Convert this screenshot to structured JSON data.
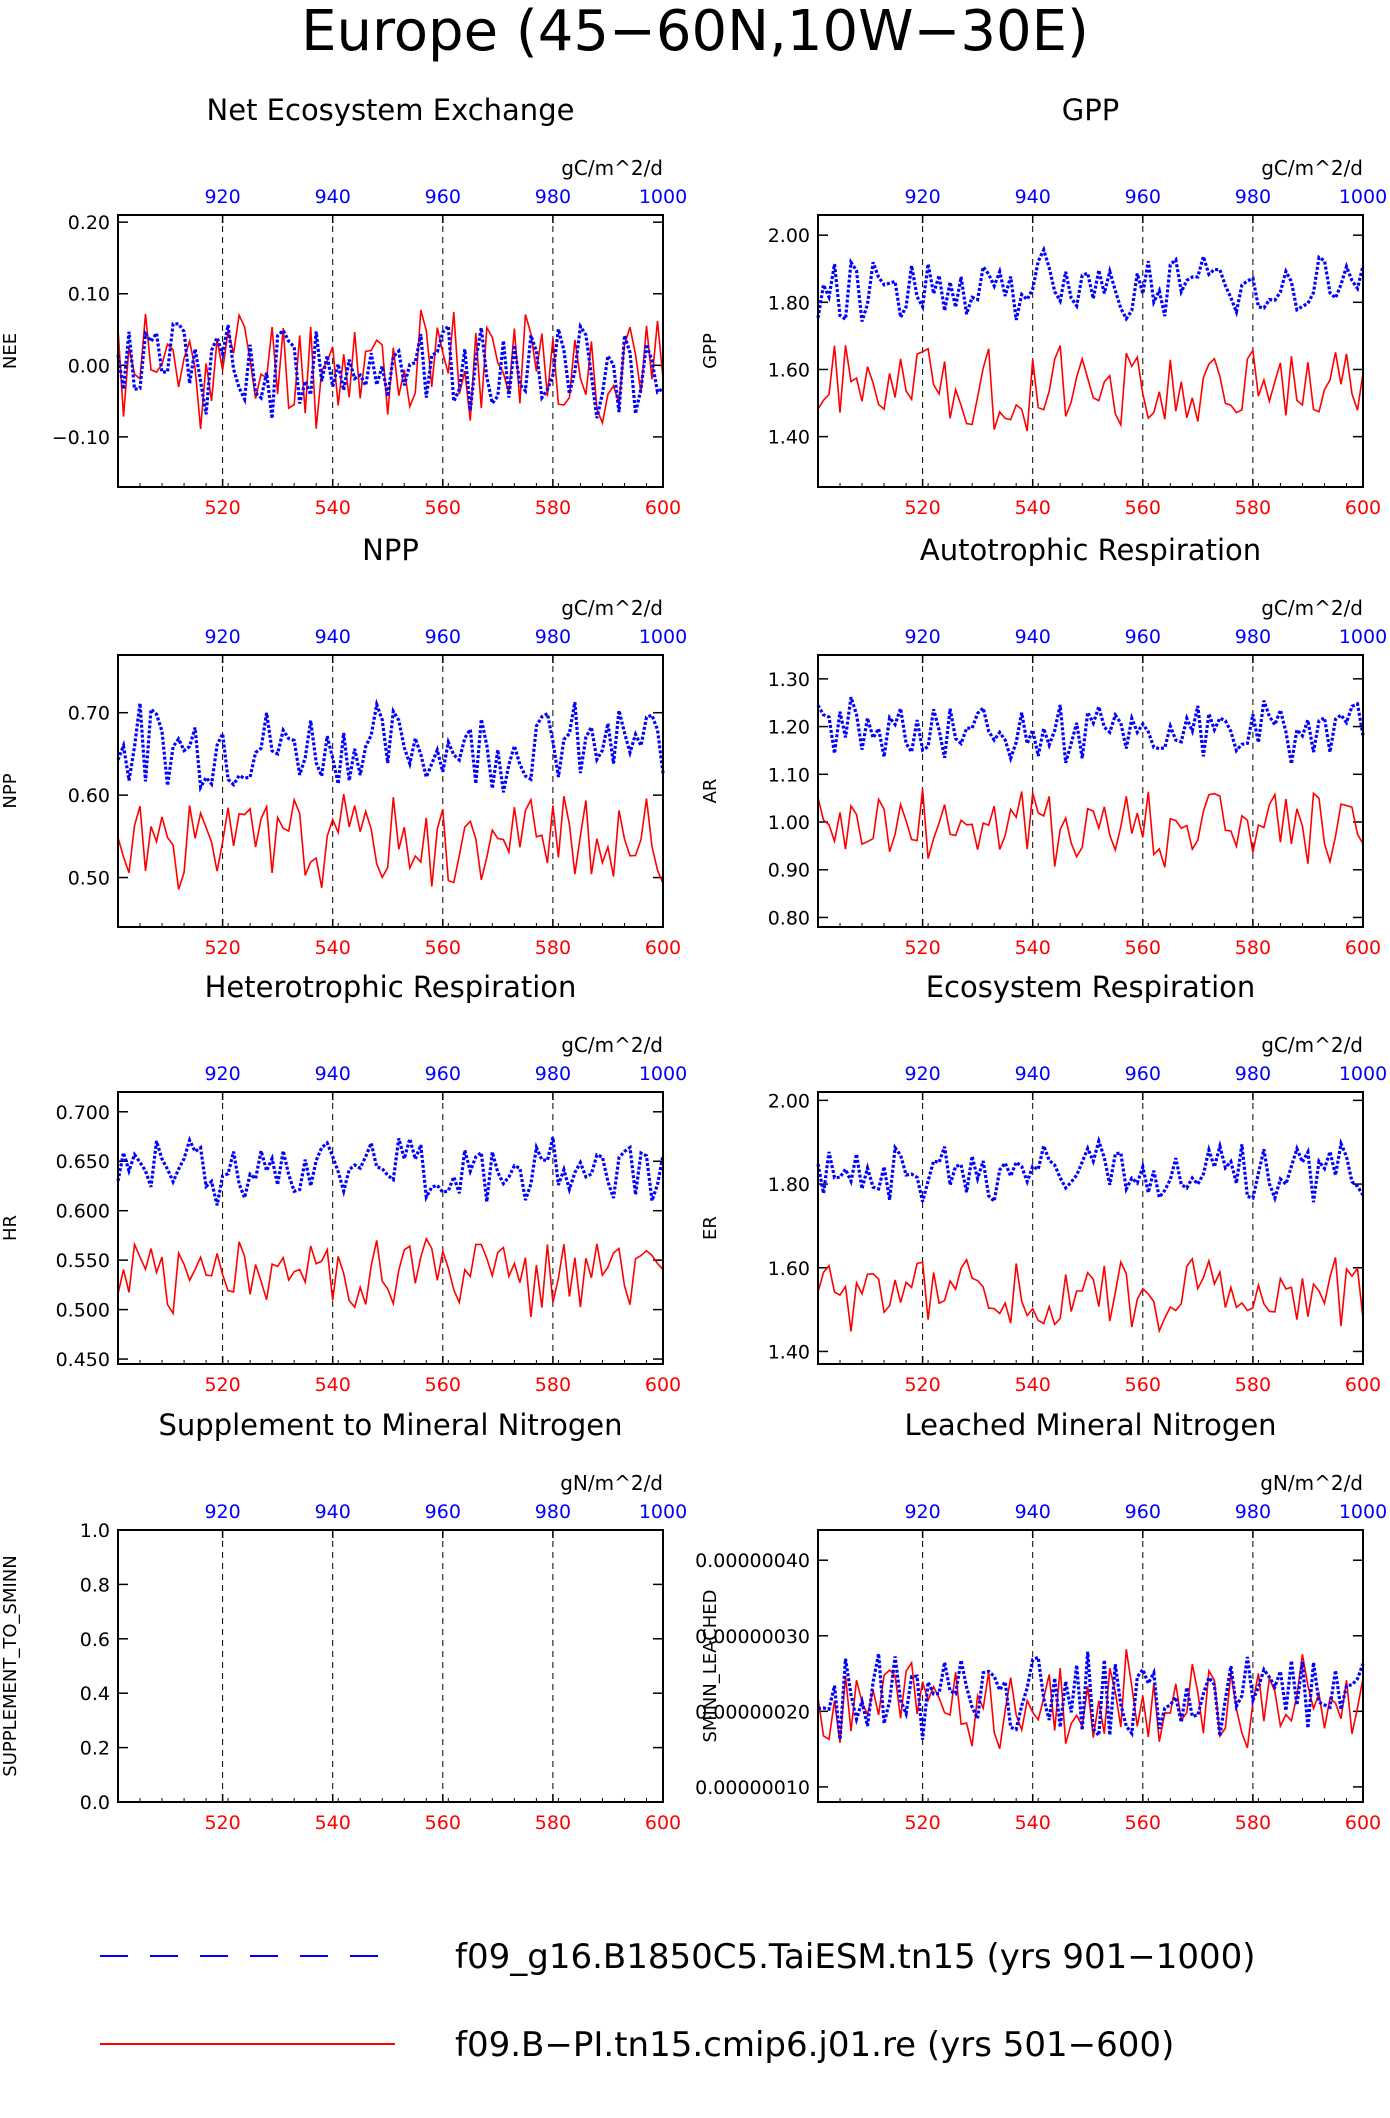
{
  "figure": {
    "title": "Europe (45−60N,10W−30E)"
  },
  "colors": {
    "series_a": "#ff0000",
    "series_b": "#0000ff",
    "axis": "#000000",
    "grid": "#000000"
  },
  "legend": [
    {
      "label": "f09_g16.B1850C5.TaiESM.tn15 (yrs 901−1000)",
      "color": "#0000ff",
      "style": "dashed"
    },
    {
      "label": "f09.B−PI.tn15.cmip6.j01.re (yrs 501−600)",
      "color": "#ff0000",
      "style": "solid"
    }
  ],
  "chart_data": [
    {
      "type": "line",
      "title": "Net Ecosystem Exchange",
      "ylabel": "NEE",
      "units": "gC/m^2/d",
      "bottom_axis": {
        "range": [
          501,
          600
        ],
        "ticks": [
          "520",
          "540",
          "560",
          "580",
          "600"
        ],
        "color": "#ff0000"
      },
      "top_axis": {
        "range": [
          901,
          1000
        ],
        "ticks": [
          "920",
          "940",
          "960",
          "980",
          "1000"
        ],
        "color": "#0000ff"
      },
      "ylim": [
        -0.17,
        0.21
      ],
      "yticks": [
        "0.20",
        "0.10",
        "0.00",
        "−0.10"
      ],
      "ytick_values": [
        0.2,
        0.1,
        0.0,
        -0.1
      ],
      "series": [
        {
          "name": "f09.B−PI.tn15.cmip6.j01.re (yrs 501−600)",
          "mean": 0.0,
          "amp": 0.075,
          "seed": 11
        },
        {
          "name": "f09_g16.B1850C5.TaiESM.tn15 (yrs 901−1000)",
          "mean": 0.0,
          "amp": 0.06,
          "seed": 12
        }
      ]
    },
    {
      "type": "line",
      "title": "GPP",
      "ylabel": "GPP",
      "units": "gC/m^2/d",
      "bottom_axis": {
        "range": [
          501,
          600
        ],
        "ticks": [
          "520",
          "540",
          "560",
          "580",
          "600"
        ],
        "color": "#ff0000"
      },
      "top_axis": {
        "range": [
          901,
          1000
        ],
        "ticks": [
          "920",
          "940",
          "960",
          "980",
          "1000"
        ],
        "color": "#0000ff"
      },
      "ylim": [
        1.25,
        2.06
      ],
      "yticks": [
        "2.00",
        "1.80",
        "1.60",
        "1.40"
      ],
      "ytick_values": [
        2.0,
        1.8,
        1.6,
        1.4
      ],
      "series": [
        {
          "name": "f09.B−PI.tn15.cmip6.j01.re (yrs 501−600)",
          "mean": 1.55,
          "amp": 0.11,
          "seed": 21
        },
        {
          "name": "f09_g16.B1850C5.TaiESM.tn15 (yrs 901−1000)",
          "mean": 1.85,
          "amp": 0.09,
          "seed": 22
        }
      ]
    },
    {
      "type": "line",
      "title": "NPP",
      "ylabel": "NPP",
      "units": "gC/m^2/d",
      "bottom_axis": {
        "range": [
          501,
          600
        ],
        "ticks": [
          "520",
          "540",
          "560",
          "580",
          "600"
        ],
        "color": "#ff0000"
      },
      "top_axis": {
        "range": [
          901,
          1000
        ],
        "ticks": [
          "920",
          "940",
          "960",
          "980",
          "1000"
        ],
        "color": "#0000ff"
      },
      "ylim": [
        0.44,
        0.77
      ],
      "yticks": [
        "0.70",
        "0.60",
        "0.50"
      ],
      "ytick_values": [
        0.7,
        0.6,
        0.5
      ],
      "series": [
        {
          "name": "f09.B−PI.tn15.cmip6.j01.re (yrs 501−600)",
          "mean": 0.545,
          "amp": 0.05,
          "seed": 31
        },
        {
          "name": "f09_g16.B1850C5.TaiESM.tn15 (yrs 901−1000)",
          "mean": 0.66,
          "amp": 0.045,
          "seed": 32
        }
      ]
    },
    {
      "type": "line",
      "title": "Autotrophic Respiration",
      "ylabel": "AR",
      "units": "gC/m^2/d",
      "bottom_axis": {
        "range": [
          501,
          600
        ],
        "ticks": [
          "520",
          "540",
          "560",
          "580",
          "600"
        ],
        "color": "#ff0000"
      },
      "top_axis": {
        "range": [
          901,
          1000
        ],
        "ticks": [
          "920",
          "940",
          "960",
          "980",
          "1000"
        ],
        "color": "#0000ff"
      },
      "ylim": [
        0.78,
        1.35
      ],
      "yticks": [
        "1.30",
        "1.20",
        "1.10",
        "1.00",
        "0.90",
        "0.80"
      ],
      "ytick_values": [
        1.3,
        1.2,
        1.1,
        1.0,
        0.9,
        0.8
      ],
      "series": [
        {
          "name": "f09.B−PI.tn15.cmip6.j01.re (yrs 501−600)",
          "mean": 0.99,
          "amp": 0.08,
          "seed": 41
        },
        {
          "name": "f09_g16.B1850C5.TaiESM.tn15 (yrs 901−1000)",
          "mean": 1.19,
          "amp": 0.06,
          "seed": 42
        }
      ]
    },
    {
      "type": "line",
      "title": "Heterotrophic Respiration",
      "ylabel": "HR",
      "units": "gC/m^2/d",
      "bottom_axis": {
        "range": [
          501,
          600
        ],
        "ticks": [
          "520",
          "540",
          "560",
          "580",
          "600"
        ],
        "color": "#ff0000"
      },
      "top_axis": {
        "range": [
          901,
          1000
        ],
        "ticks": [
          "920",
          "940",
          "960",
          "980",
          "1000"
        ],
        "color": "#0000ff"
      },
      "ylim": [
        0.445,
        0.72
      ],
      "yticks": [
        "0.700",
        "0.650",
        "0.600",
        "0.550",
        "0.500",
        "0.450"
      ],
      "ytick_values": [
        0.7,
        0.65,
        0.6,
        0.55,
        0.5,
        0.45
      ],
      "series": [
        {
          "name": "f09.B−PI.tn15.cmip6.j01.re (yrs 501−600)",
          "mean": 0.535,
          "amp": 0.035,
          "seed": 51
        },
        {
          "name": "f09_g16.B1850C5.TaiESM.tn15 (yrs 901−1000)",
          "mean": 0.642,
          "amp": 0.03,
          "seed": 52
        }
      ]
    },
    {
      "type": "line",
      "title": "Ecosystem Respiration",
      "ylabel": "ER",
      "units": "gC/m^2/d",
      "bottom_axis": {
        "range": [
          501,
          600
        ],
        "ticks": [
          "520",
          "540",
          "560",
          "580",
          "600"
        ],
        "color": "#ff0000"
      },
      "top_axis": {
        "range": [
          901,
          1000
        ],
        "ticks": [
          "920",
          "940",
          "960",
          "980",
          "1000"
        ],
        "color": "#0000ff"
      },
      "ylim": [
        1.37,
        2.02
      ],
      "yticks": [
        "2.00",
        "1.80",
        "1.60",
        "1.40"
      ],
      "ytick_values": [
        2.0,
        1.8,
        1.6,
        1.4
      ],
      "series": [
        {
          "name": "f09.B−PI.tn15.cmip6.j01.re (yrs 501−600)",
          "mean": 1.53,
          "amp": 0.08,
          "seed": 61
        },
        {
          "name": "f09_g16.B1850C5.TaiESM.tn15 (yrs 901−1000)",
          "mean": 1.83,
          "amp": 0.06,
          "seed": 62
        }
      ]
    },
    {
      "type": "line",
      "title": "Supplement to Mineral Nitrogen",
      "ylabel": "SUPPLEMENT_TO_SMINN",
      "units": "gN/m^2/d",
      "bottom_axis": {
        "range": [
          501,
          600
        ],
        "ticks": [
          "520",
          "540",
          "560",
          "580",
          "600"
        ],
        "color": "#ff0000"
      },
      "top_axis": {
        "range": [
          901,
          1000
        ],
        "ticks": [
          "920",
          "940",
          "960",
          "980",
          "1000"
        ],
        "color": "#0000ff"
      },
      "ylim": [
        0.0,
        1.0
      ],
      "yticks": [
        "1.0",
        "0.8",
        "0.6",
        "0.4",
        "0.2",
        "0.0"
      ],
      "ytick_values": [
        1.0,
        0.8,
        0.6,
        0.4,
        0.2,
        0.0
      ],
      "series": []
    },
    {
      "type": "line",
      "title": "Leached Mineral Nitrogen",
      "ylabel": "SMINN_LEACHED",
      "units": "gN/m^2/d",
      "bottom_axis": {
        "range": [
          501,
          600
        ],
        "ticks": [
          "520",
          "540",
          "560",
          "580",
          "600"
        ],
        "color": "#ff0000"
      },
      "top_axis": {
        "range": [
          901,
          1000
        ],
        "ticks": [
          "920",
          "940",
          "960",
          "980",
          "1000"
        ],
        "color": "#0000ff"
      },
      "ylim": [
        8e-08,
        4.4e-07
      ],
      "yticks": [
        "0.00000040",
        "0.00000030",
        "0.00000020",
        "0.00000010"
      ],
      "ytick_values": [
        4e-07,
        3e-07,
        2e-07,
        1e-07
      ],
      "series": [
        {
          "name": "f09.B−PI.tn15.cmip6.j01.re (yrs 501−600)",
          "mean": 2.1e-07,
          "amp": 6e-08,
          "seed": 81
        },
        {
          "name": "f09_g16.B1850C5.TaiESM.tn15 (yrs 901−1000)",
          "mean": 2.2e-07,
          "amp": 5e-08,
          "seed": 82
        }
      ]
    }
  ]
}
